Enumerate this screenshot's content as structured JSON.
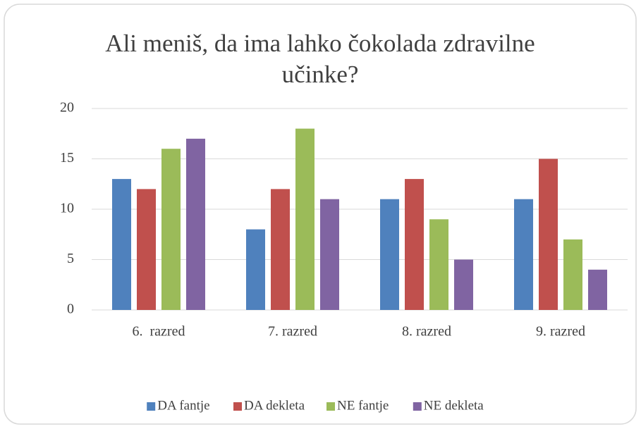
{
  "chart_data": {
    "type": "bar",
    "title": "Ali meniš, da ima lahko čokolada zdravilne učinke?",
    "categories": [
      "6.  razred",
      "7. razred",
      "8. razred",
      "9. razred"
    ],
    "series": [
      {
        "name": "DA fantje",
        "color": "#4f81bd",
        "values": [
          13,
          8,
          11,
          11
        ]
      },
      {
        "name": "DA dekleta",
        "color": "#c0504d",
        "values": [
          12,
          12,
          13,
          15
        ]
      },
      {
        "name": "NE fantje",
        "color": "#9bbb59",
        "values": [
          16,
          18,
          9,
          7
        ]
      },
      {
        "name": "NE dekleta",
        "color": "#8064a2",
        "values": [
          17,
          11,
          5,
          4
        ]
      }
    ],
    "ylim": [
      0,
      20
    ],
    "yticks": [
      0,
      5,
      10,
      15,
      20
    ],
    "grid": true,
    "legend": "bottom"
  }
}
